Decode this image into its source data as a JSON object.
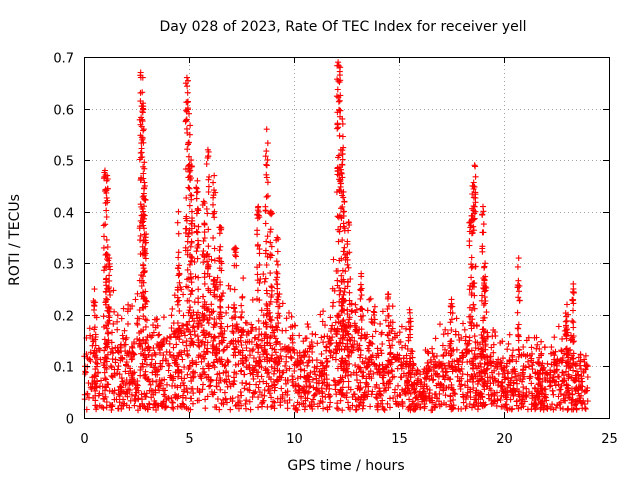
{
  "chart_data": {
    "type": "scatter",
    "title": "Day 028 of 2023, Rate Of TEC Index for receiver yell",
    "xlabel": "GPS time / hours",
    "ylabel": "ROTI / TECUs",
    "xlim": [
      0,
      25
    ],
    "ylim": [
      0,
      0.7
    ],
    "xticks": [
      "0",
      "5",
      "10",
      "15",
      "20",
      "25"
    ],
    "yticks": [
      "0",
      "0.1",
      "0.2",
      "0.3",
      "0.4",
      "0.5",
      "0.6",
      "0.7"
    ],
    "xtick_values": [
      0,
      5,
      10,
      15,
      20,
      25
    ],
    "ytick_values": [
      0,
      0.1,
      0.2,
      0.3,
      0.4,
      0.5,
      0.6,
      0.7
    ],
    "grid": true,
    "marker": "+",
    "color": "#ff0000",
    "data_extent_hours": [
      0,
      24
    ],
    "envelope": [
      {
        "x": 0.0,
        "base": 0.12,
        "spread": 0.06
      },
      {
        "x": 1.0,
        "base": 0.14,
        "spread": 0.12
      },
      {
        "x": 2.0,
        "base": 0.14,
        "spread": 0.1
      },
      {
        "x": 2.8,
        "base": 0.16,
        "spread": 0.14
      },
      {
        "x": 3.5,
        "base": 0.13,
        "spread": 0.08
      },
      {
        "x": 4.5,
        "base": 0.16,
        "spread": 0.12
      },
      {
        "x": 5.2,
        "base": 0.2,
        "spread": 0.16
      },
      {
        "x": 6.0,
        "base": 0.2,
        "spread": 0.14
      },
      {
        "x": 7.0,
        "base": 0.16,
        "spread": 0.1
      },
      {
        "x": 8.0,
        "base": 0.16,
        "spread": 0.12
      },
      {
        "x": 8.8,
        "base": 0.2,
        "spread": 0.14
      },
      {
        "x": 9.5,
        "base": 0.15,
        "spread": 0.1
      },
      {
        "x": 10.5,
        "base": 0.11,
        "spread": 0.06
      },
      {
        "x": 11.5,
        "base": 0.14,
        "spread": 0.08
      },
      {
        "x": 12.3,
        "base": 0.22,
        "spread": 0.18
      },
      {
        "x": 13.0,
        "base": 0.16,
        "spread": 0.1
      },
      {
        "x": 14.0,
        "base": 0.14,
        "spread": 0.08
      },
      {
        "x": 15.0,
        "base": 0.12,
        "spread": 0.08
      },
      {
        "x": 16.0,
        "base": 0.08,
        "spread": 0.03
      },
      {
        "x": 17.0,
        "base": 0.12,
        "spread": 0.06
      },
      {
        "x": 18.0,
        "base": 0.14,
        "spread": 0.08
      },
      {
        "x": 19.0,
        "base": 0.12,
        "spread": 0.08
      },
      {
        "x": 20.0,
        "base": 0.1,
        "spread": 0.05
      },
      {
        "x": 21.0,
        "base": 0.11,
        "spread": 0.06
      },
      {
        "x": 22.0,
        "base": 0.1,
        "spread": 0.06
      },
      {
        "x": 23.0,
        "base": 0.12,
        "spread": 0.07
      },
      {
        "x": 24.0,
        "base": 0.09,
        "spread": 0.03
      }
    ],
    "spikes": [
      {
        "x": 0.5,
        "peak": 0.25
      },
      {
        "x": 1.0,
        "peak": 0.48
      },
      {
        "x": 1.1,
        "peak": 0.47
      },
      {
        "x": 1.2,
        "peak": 0.31
      },
      {
        "x": 2.7,
        "peak": 0.67
      },
      {
        "x": 2.8,
        "peak": 0.66
      },
      {
        "x": 2.85,
        "peak": 0.56
      },
      {
        "x": 2.9,
        "peak": 0.45
      },
      {
        "x": 4.5,
        "peak": 0.4
      },
      {
        "x": 4.9,
        "peak": 0.66
      },
      {
        "x": 5.0,
        "peak": 0.59
      },
      {
        "x": 5.1,
        "peak": 0.5
      },
      {
        "x": 5.4,
        "peak": 0.46
      },
      {
        "x": 5.7,
        "peak": 0.42
      },
      {
        "x": 5.9,
        "peak": 0.52
      },
      {
        "x": 6.2,
        "peak": 0.47
      },
      {
        "x": 6.5,
        "peak": 0.37
      },
      {
        "x": 7.2,
        "peak": 0.33
      },
      {
        "x": 8.3,
        "peak": 0.41
      },
      {
        "x": 8.7,
        "peak": 0.56
      },
      {
        "x": 8.9,
        "peak": 0.4
      },
      {
        "x": 9.2,
        "peak": 0.35
      },
      {
        "x": 12.1,
        "peak": 0.69
      },
      {
        "x": 12.2,
        "peak": 0.68
      },
      {
        "x": 12.3,
        "peak": 0.58
      },
      {
        "x": 12.4,
        "peak": 0.42
      },
      {
        "x": 12.6,
        "peak": 0.38
      },
      {
        "x": 13.2,
        "peak": 0.28
      },
      {
        "x": 14.5,
        "peak": 0.24
      },
      {
        "x": 15.5,
        "peak": 0.21
      },
      {
        "x": 17.5,
        "peak": 0.23
      },
      {
        "x": 18.6,
        "peak": 0.49
      },
      {
        "x": 18.5,
        "peak": 0.45
      },
      {
        "x": 18.4,
        "peak": 0.38
      },
      {
        "x": 19.0,
        "peak": 0.41
      },
      {
        "x": 19.1,
        "peak": 0.3
      },
      {
        "x": 20.7,
        "peak": 0.31
      },
      {
        "x": 23.3,
        "peak": 0.26
      },
      {
        "x": 23.0,
        "peak": 0.22
      }
    ],
    "n_points": 2600
  }
}
